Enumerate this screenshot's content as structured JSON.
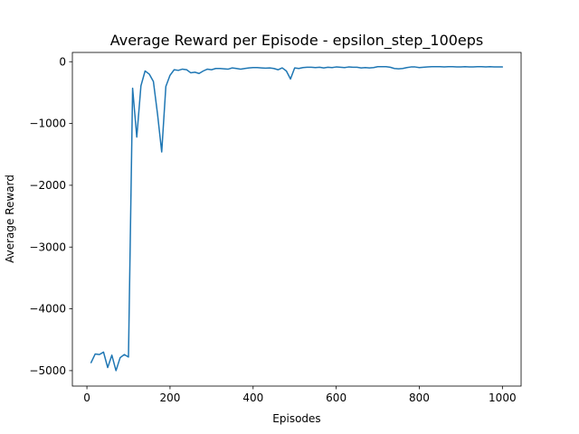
{
  "chart_data": {
    "type": "line",
    "title": "Average Reward per Episode - epsilon_step_100eps",
    "xlabel": "Episodes",
    "ylabel": "Average Reward",
    "xlim": [
      -35,
      1045
    ],
    "ylim": [
      -5250,
      150
    ],
    "xticks": [
      0,
      200,
      400,
      600,
      800,
      1000
    ],
    "yticks": [
      0,
      -1000,
      -2000,
      -3000,
      -4000,
      -5000
    ],
    "xtick_labels": [
      "0",
      "200",
      "400",
      "600",
      "800",
      "1000"
    ],
    "ytick_labels": [
      "0",
      "−1000",
      "−2000",
      "−3000",
      "−4000",
      "−5000"
    ],
    "grid": false,
    "legend": "none",
    "colors": {
      "line": "#1f77b4"
    },
    "series": [
      {
        "x": [
          10,
          20,
          30,
          40,
          50,
          60,
          70,
          80,
          90,
          100,
          110,
          120,
          130,
          140,
          150,
          160,
          170,
          180,
          190,
          200,
          210,
          220,
          230,
          240,
          250,
          260,
          270,
          280,
          290,
          300,
          310,
          320,
          330,
          340,
          350,
          360,
          370,
          380,
          390,
          400,
          410,
          420,
          430,
          440,
          450,
          460,
          470,
          480,
          490,
          500,
          510,
          520,
          530,
          540,
          550,
          560,
          570,
          580,
          590,
          600,
          610,
          620,
          630,
          640,
          650,
          660,
          670,
          680,
          690,
          700,
          710,
          720,
          730,
          740,
          750,
          760,
          770,
          780,
          790,
          800,
          810,
          820,
          830,
          840,
          850,
          860,
          870,
          880,
          890,
          900,
          910,
          920,
          930,
          940,
          950,
          960,
          970,
          980,
          990,
          1000
        ],
        "values": [
          -4870,
          -4730,
          -4740,
          -4700,
          -4950,
          -4750,
          -5000,
          -4790,
          -4740,
          -4780,
          -430,
          -1220,
          -390,
          -150,
          -200,
          -320,
          -850,
          -1460,
          -400,
          -220,
          -130,
          -140,
          -120,
          -130,
          -180,
          -170,
          -190,
          -150,
          -120,
          -130,
          -110,
          -110,
          -115,
          -120,
          -100,
          -110,
          -120,
          -110,
          -100,
          -95,
          -95,
          -100,
          -105,
          -100,
          -110,
          -130,
          -100,
          -150,
          -280,
          -100,
          -110,
          -95,
          -90,
          -90,
          -95,
          -90,
          -100,
          -90,
          -95,
          -85,
          -90,
          -95,
          -85,
          -90,
          -90,
          -100,
          -95,
          -100,
          -95,
          -80,
          -80,
          -80,
          -90,
          -110,
          -115,
          -110,
          -95,
          -85,
          -85,
          -95,
          -90,
          -85,
          -80,
          -80,
          -80,
          -85,
          -80,
          -80,
          -85,
          -85,
          -80,
          -85,
          -85,
          -80,
          -80,
          -85,
          -80,
          -85,
          -85,
          -85
        ]
      }
    ]
  }
}
